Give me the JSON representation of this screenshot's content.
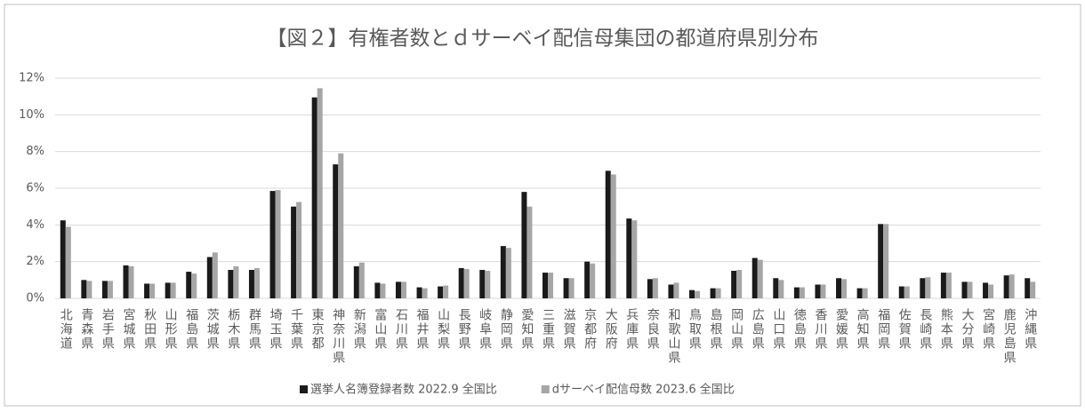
{
  "chart_data": {
    "type": "bar",
    "title": "【図２】有権者数とｄサーベイ配信母集団の都道府県別分布",
    "categories": [
      "北海道",
      "青森県",
      "岩手県",
      "宮城県",
      "秋田県",
      "山形県",
      "福島県",
      "茨城県",
      "栃木県",
      "群馬県",
      "埼玉県",
      "千葉県",
      "東京都",
      "神奈川県",
      "新潟県",
      "富山県",
      "石川県",
      "福井県",
      "山梨県",
      "長野県",
      "岐阜県",
      "静岡県",
      "愛知県",
      "三重県",
      "滋賀県",
      "京都府",
      "大阪府",
      "兵庫県",
      "奈良県",
      "和歌山県",
      "鳥取県",
      "島根県",
      "岡山県",
      "広島県",
      "山口県",
      "徳島県",
      "香川県",
      "愛媛県",
      "高知県",
      "福岡県",
      "佐賀県",
      "長崎県",
      "熊本県",
      "大分県",
      "宮崎県",
      "鹿児島県",
      "沖縄県"
    ],
    "series": [
      {
        "name": "選挙人名簿登録者数 2022.9 全国比",
        "color": "#1a1a1a",
        "values": [
          4.25,
          1.0,
          0.95,
          1.8,
          0.8,
          0.85,
          1.45,
          2.25,
          1.55,
          1.55,
          5.85,
          5.0,
          10.95,
          7.3,
          1.75,
          0.85,
          0.9,
          0.6,
          0.65,
          1.65,
          1.55,
          2.85,
          5.8,
          1.4,
          1.1,
          2.0,
          6.95,
          4.35,
          1.05,
          0.75,
          0.45,
          0.55,
          1.5,
          2.2,
          1.1,
          0.6,
          0.75,
          1.1,
          0.55,
          4.05,
          0.65,
          1.1,
          1.4,
          0.9,
          0.85,
          1.25,
          1.1
        ]
      },
      {
        "name": "dサーベイ配信母数 2023.6 全国比",
        "color": "#a6a6a6",
        "values": [
          3.9,
          0.95,
          0.95,
          1.75,
          0.8,
          0.85,
          1.35,
          2.5,
          1.75,
          1.65,
          5.9,
          5.25,
          11.45,
          7.9,
          1.95,
          0.8,
          0.9,
          0.55,
          0.7,
          1.6,
          1.5,
          2.75,
          5.0,
          1.4,
          1.1,
          1.9,
          6.75,
          4.25,
          1.1,
          0.85,
          0.4,
          0.55,
          1.55,
          2.1,
          1.0,
          0.6,
          0.75,
          1.05,
          0.55,
          4.05,
          0.65,
          1.15,
          1.4,
          0.9,
          0.75,
          1.3,
          0.9
        ]
      }
    ],
    "ylim": [
      0,
      12
    ],
    "yticks": [
      {
        "value": 0,
        "label": "0%"
      },
      {
        "value": 2,
        "label": "2%"
      },
      {
        "value": 4,
        "label": "4%"
      },
      {
        "value": 6,
        "label": "6%"
      },
      {
        "value": 8,
        "label": "8%"
      },
      {
        "value": 10,
        "label": "10%"
      },
      {
        "value": 12,
        "label": "12%"
      }
    ],
    "grid": true
  }
}
